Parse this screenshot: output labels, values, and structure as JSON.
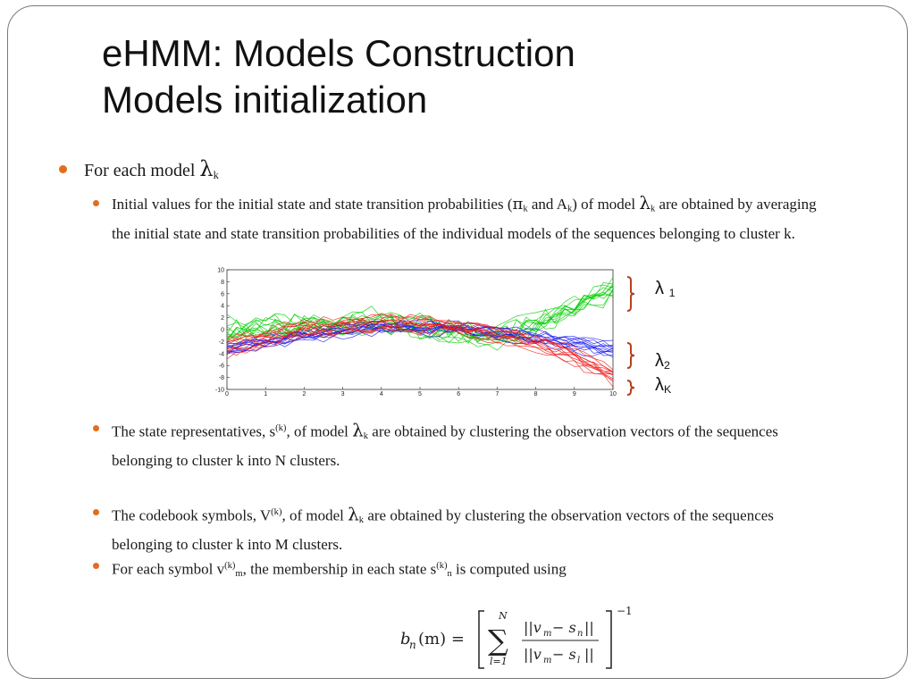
{
  "title": {
    "line1": "eHMM: Models Construction",
    "line2": "Models initialization"
  },
  "bullet1": {
    "text": "For each model ",
    "lambda": "λ",
    "sub": "k"
  },
  "bullet2": {
    "part1": "Initial values for the initial state and state transition probabilities (",
    "pi": "π",
    "pi_sub": "k",
    "and": " and A",
    "a_sub": "k",
    "part2": ") of model ",
    "lambda": "λ",
    "lambda_sub": "k",
    "part3": " are obtained by averaging the initial state and state transition probabilities of the individual models of the sequences belonging to cluster k."
  },
  "bullet3": {
    "part1": "The state representatives, s",
    "sup": "(k)",
    "part2": ", of model ",
    "lambda": "λ",
    "lambda_sub": "k",
    "part3": " are obtained by clustering the observation vectors of the sequences belonging to cluster k into N clusters."
  },
  "bullet4": {
    "part1": "The codebook symbols, V",
    "sup": "(k)",
    "part2": ", of model ",
    "lambda": "λ",
    "lambda_sub": "k",
    "part3": " are obtained by clustering the observation vectors of the sequences belonging to cluster k into M clusters."
  },
  "bullet5": {
    "part1": "For each symbol v",
    "sup1": "(k)",
    "sub1": "m",
    "part2": ", the membership in each state s",
    "sup2": "(k)",
    "sub2": "n",
    "part3": " is computed using"
  },
  "legend": {
    "l1": "λ",
    "l1_sub": "1",
    "l2": "λ",
    "l2_sub": "2",
    "lk": "λ",
    "lk_sub": "K",
    "brace_color": "#b5401a"
  },
  "chart_data": {
    "type": "line",
    "xlim": [
      0,
      10
    ],
    "ylim": [
      -10,
      10
    ],
    "x_ticks": [
      "0",
      "1",
      "2",
      "3",
      "4",
      "5",
      "6",
      "7",
      "8",
      "9",
      "10"
    ],
    "y_ticks": [
      "10",
      "8",
      "6",
      "4",
      "2",
      "0",
      "-2",
      "-4",
      "-6",
      "-8",
      "-10"
    ],
    "grid": false,
    "series": [
      {
        "color": "#00cc00",
        "curves": 12,
        "x": [
          0,
          2,
          4,
          6,
          7,
          8,
          9,
          10
        ],
        "y": [
          0,
          1,
          1.5,
          0,
          -1,
          1,
          4,
          7
        ]
      },
      {
        "color": "#1a1aee",
        "curves": 12,
        "x": [
          0,
          2,
          4,
          6,
          8,
          9,
          10
        ],
        "y": [
          -4,
          -1.5,
          0,
          0,
          -1.5,
          -2.5,
          -3.5
        ]
      },
      {
        "color": "#ee1a1a",
        "curves": 12,
        "x": [
          0,
          2,
          4,
          6,
          8,
          9,
          10
        ],
        "y": [
          -3,
          0,
          1,
          0.5,
          -2,
          -4.5,
          -7.5
        ]
      }
    ]
  },
  "formula": {
    "lhs": "b",
    "lhs_sub": "n",
    "lhs_arg": "(m) =",
    "sum_top": "N",
    "sum_bot": "l=1",
    "num": "||v",
    "num_sub": "m",
    "num2": " − s",
    "num2_sub": "n",
    "num_end": "||",
    "den": "||v",
    "den_sub": "m",
    "den2": " − s",
    "den2_sub": "l",
    "den_end": "||",
    "exp": "−1"
  }
}
